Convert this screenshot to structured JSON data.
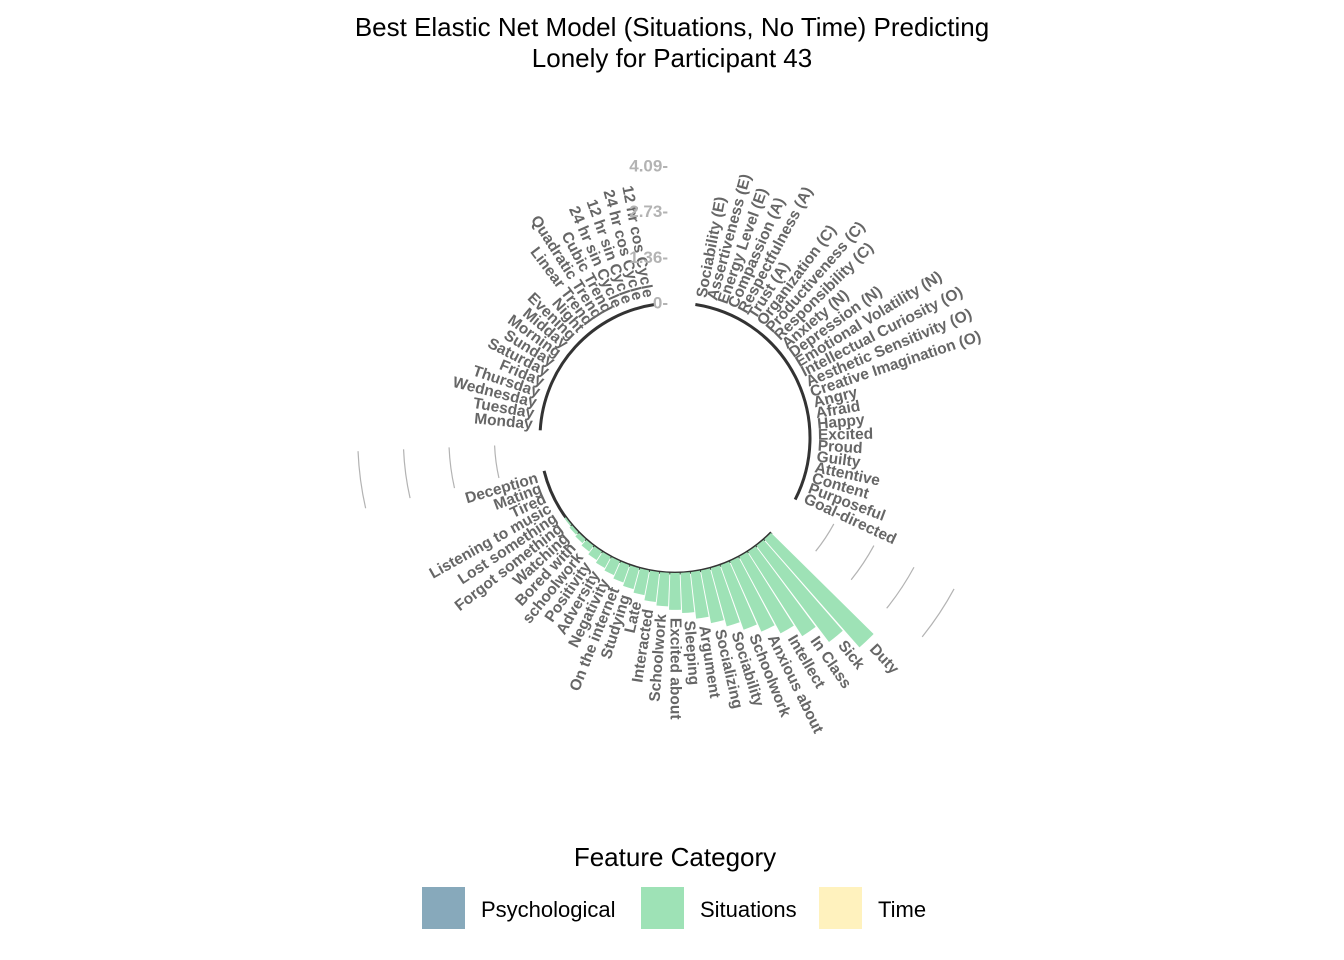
{
  "chart_data": {
    "type": "bar",
    "coord": "polar",
    "title": [
      "Best Elastic Net Model (Situations, No Time) Predicting",
      "Lonely for Participant 43"
    ],
    "ytick_labels": [
      "0-",
      "1.36-",
      "2.73-",
      "4.09-"
    ],
    "ytick_values": [
      0,
      1.36,
      2.73,
      4.09
    ],
    "legend": {
      "title": "Feature Category",
      "placement": "bottom",
      "entries": [
        {
          "name": "Psychological",
          "color": "#87A9BB"
        },
        {
          "name": "Situations",
          "color": "#9EE2B6"
        },
        {
          "name": "Time",
          "color": "#FFF2BE"
        }
      ]
    },
    "groups": [
      {
        "category": "Psychological",
        "features": [
          {
            "label": "Sociability (E)",
            "value": 0
          },
          {
            "label": "Assertiveness (E)",
            "value": 0
          },
          {
            "label": "Energy Level (E)",
            "value": 0
          },
          {
            "label": "Compassion (A)",
            "value": 0
          },
          {
            "label": "Respectfulness (A)",
            "value": 0
          },
          {
            "label": "Trust (A)",
            "value": 0
          },
          {
            "label": "Organization (C)",
            "value": 0
          },
          {
            "label": "Productiveness (C)",
            "value": 0
          },
          {
            "label": "Responsibility (C)",
            "value": 0
          },
          {
            "label": "Anxiety (N)",
            "value": 0
          },
          {
            "label": "Depression (N)",
            "value": 0
          },
          {
            "label": "Emotional Volatility (N)",
            "value": 0
          },
          {
            "label": "Intellectual Curiosity (O)",
            "value": 0
          },
          {
            "label": "Aesthetic Sensitivity (O)",
            "value": 0
          },
          {
            "label": "Creative Imagination (O)",
            "value": 0
          },
          {
            "label": "Angry",
            "value": 0
          },
          {
            "label": "Afraid",
            "value": 0
          },
          {
            "label": "Happy",
            "value": 0
          },
          {
            "label": "Excited",
            "value": 0
          },
          {
            "label": "Proud",
            "value": 0
          },
          {
            "label": "Guilty",
            "value": 0
          },
          {
            "label": "Attentive",
            "value": 0
          },
          {
            "label": "Content",
            "value": 0
          },
          {
            "label": "Purposeful",
            "value": 0
          },
          {
            "label": "Goal-directed",
            "value": 0
          }
        ]
      },
      {
        "category": "Situations",
        "features": [
          {
            "label": "Duty",
            "value": 4.3
          },
          {
            "label": "Sick",
            "value": 3.6
          },
          {
            "label": "In Class",
            "value": 3.0
          },
          {
            "label": "Intellect",
            "value": 2.6
          },
          {
            "label": "Anxious about",
            "value": 2.3
          },
          {
            "label": "Schoolwork",
            "value": 2.05
          },
          {
            "label": "Sociability",
            "value": 1.8
          },
          {
            "label": "Socializing",
            "value": 1.6
          },
          {
            "label": "Argument",
            "value": 1.4
          },
          {
            "label": "Sleeping",
            "value": 1.2
          },
          {
            "label": "Excited about",
            "value": 1.1
          },
          {
            "label": "Schoolwork",
            "value": 1.0
          },
          {
            "label": "Interacted",
            "value": 0.9
          },
          {
            "label": "Late",
            "value": 0.75
          },
          {
            "label": "Studying",
            "value": 0.65
          },
          {
            "label": "On the internet",
            "value": 0.55
          },
          {
            "label": "Negativity",
            "value": 0.45
          },
          {
            "label": "Adversity",
            "value": 0.38
          },
          {
            "label": "Positivity",
            "value": 0.3
          },
          {
            "label": "schoolwork",
            "value": 0.22
          },
          {
            "label": "Bored with",
            "value": 0.15
          },
          {
            "label": "Watching",
            "value": 0.1
          },
          {
            "label": "Forgot something",
            "value": 0.05
          },
          {
            "label": "Lost something",
            "value": 0
          },
          {
            "label": "Listening to music",
            "value": 0
          },
          {
            "label": "Tired",
            "value": 0
          },
          {
            "label": "Mating",
            "value": 0
          },
          {
            "label": "Deception",
            "value": 0
          }
        ]
      },
      {
        "category": "Time",
        "features": [
          {
            "label": "Monday",
            "value": 0
          },
          {
            "label": "Tuesday",
            "value": 0
          },
          {
            "label": "Wednesday",
            "value": 0
          },
          {
            "label": "Thursday",
            "value": 0
          },
          {
            "label": "Friday",
            "value": 0
          },
          {
            "label": "Saturday",
            "value": 0
          },
          {
            "label": "Sunday",
            "value": 0
          },
          {
            "label": "Morning",
            "value": 0
          },
          {
            "label": "Midday",
            "value": 0
          },
          {
            "label": "Evening",
            "value": 0
          },
          {
            "label": "Night",
            "value": 0
          },
          {
            "label": "Linear Trend",
            "value": 0
          },
          {
            "label": "Quadratic Trend",
            "value": 0
          },
          {
            "label": "Cubic Trend",
            "value": 0
          },
          {
            "label": "24 hr sin Cycle",
            "value": 0
          },
          {
            "label": "12 hr sin Cycle",
            "value": 0
          },
          {
            "label": "24 hr cos Cycle",
            "value": 0
          },
          {
            "label": "12 hr cos Cycle",
            "value": 0
          }
        ]
      }
    ]
  }
}
